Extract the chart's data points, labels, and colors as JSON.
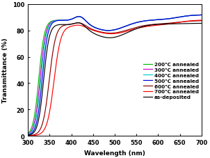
{
  "title": "",
  "xlabel": "Wavelength (nm)",
  "ylabel": "Transmittance (%)",
  "xlim": [
    300,
    700
  ],
  "ylim": [
    0,
    100
  ],
  "xticks": [
    300,
    350,
    400,
    450,
    500,
    550,
    600,
    650,
    700
  ],
  "yticks": [
    0,
    20,
    40,
    60,
    80,
    100
  ],
  "series": [
    {
      "label": "200℃ annealed",
      "color": "#00bb00"
    },
    {
      "label": "300℃ annealed",
      "color": "#cc00cc"
    },
    {
      "label": "400℃ annealed",
      "color": "#00cccc"
    },
    {
      "label": "500℃ annealed",
      "color": "#0000dd"
    },
    {
      "label": "600℃ annealed",
      "color": "#880000"
    },
    {
      "label": "700℃ annealed",
      "color": "#ff0000"
    },
    {
      "label": "as-deposited",
      "color": "#000000"
    }
  ],
  "bg_color": "#ffffff"
}
